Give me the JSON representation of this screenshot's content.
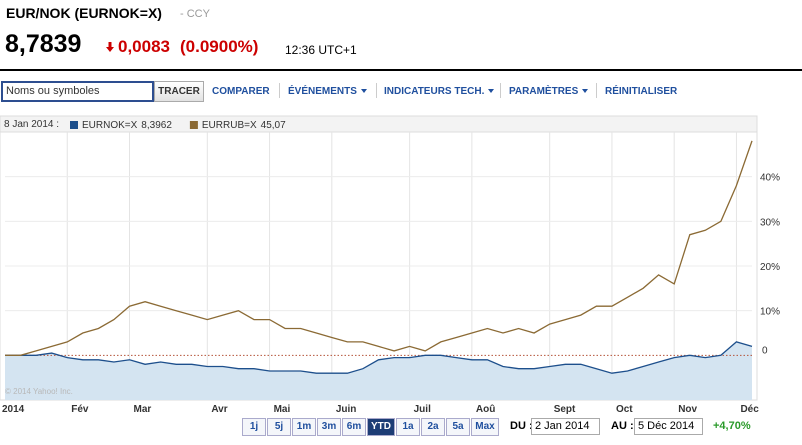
{
  "header": {
    "title": "EUR/NOK (EURNOK=X)",
    "exchange": "- CCY",
    "price": "8,7839",
    "change": "0,0083",
    "change_pct": "(0.0900%)",
    "time": "12:36 UTC+1"
  },
  "toolbar": {
    "search_placeholder": "Noms ou symboles",
    "button": "TRACER",
    "links": [
      "COMPARER",
      "ÉVÉNEMENTS",
      "INDICATEURS TECH.",
      "PARAMÈTRES",
      "RÉINITIALISER"
    ]
  },
  "chart_data": {
    "type": "line",
    "legend_date": "8 Jan 2014 :",
    "copyright": "© 2014 Yahoo! Inc.",
    "categories": [
      "2014",
      null,
      null,
      null,
      "Fév",
      null,
      null,
      null,
      "Mar",
      null,
      null,
      null,
      null,
      "Avr",
      null,
      null,
      null,
      "Mai",
      null,
      null,
      null,
      "Juin",
      null,
      null,
      null,
      null,
      "Juil",
      null,
      null,
      null,
      "Aoû",
      null,
      null,
      null,
      null,
      "Sept",
      null,
      null,
      null,
      "Oct",
      null,
      null,
      null,
      "Nov",
      null,
      null,
      null,
      "Déc",
      null
    ],
    "series": [
      {
        "name": "EURNOK=X",
        "legend_value": "8,3962",
        "color": "#1d4f8c",
        "area_color": "#d4e4f1",
        "values": [
          0,
          0,
          0,
          0.5,
          -0.5,
          -1,
          -1,
          -1.5,
          -1,
          -2,
          -1.5,
          -2,
          -2,
          -2.5,
          -2.5,
          -3,
          -3,
          -3.5,
          -3.5,
          -3.5,
          -4,
          -4,
          -4,
          -3,
          -1,
          -0.5,
          -0.5,
          0,
          0,
          -0.5,
          -1,
          -1,
          -2.5,
          -3,
          -3,
          -2.5,
          -2,
          -2,
          -3,
          -4,
          -3.5,
          -2.5,
          -1.5,
          -0.5,
          0,
          -0.5,
          0,
          3,
          2
        ]
      },
      {
        "name": "EURRUB=X",
        "legend_value": "45,07",
        "color": "#8b6a34",
        "values": [
          0,
          0,
          1,
          2,
          3,
          5,
          6,
          8,
          11,
          12,
          11,
          10,
          9,
          8,
          9,
          10,
          8,
          8,
          6,
          6,
          5,
          4,
          3,
          3,
          2,
          1,
          2,
          1,
          3,
          4,
          5,
          6,
          5,
          6,
          5,
          7,
          8,
          9,
          11,
          11,
          13,
          15,
          18,
          16,
          27,
          28,
          30,
          38,
          48
        ]
      }
    ],
    "ylim": [
      -10,
      50
    ],
    "yticks": [
      0,
      {
        "value": 10,
        "label": "10%"
      },
      {
        "value": 20,
        "label": "20%"
      },
      {
        "value": 30,
        "label": "30%"
      },
      {
        "value": 40,
        "label": "40%"
      }
    ],
    "grid": true
  },
  "range": {
    "buttons": [
      "1j",
      "5j",
      "1m",
      "3m",
      "6m",
      "YTD",
      "1a",
      "2a",
      "5a",
      "Max"
    ],
    "selected": "YTD",
    "from_label": "DU :",
    "from": "2 Jan 2014",
    "to_label": "AU :",
    "to": "5 Déc 2014",
    "performance": "+4,70%"
  }
}
